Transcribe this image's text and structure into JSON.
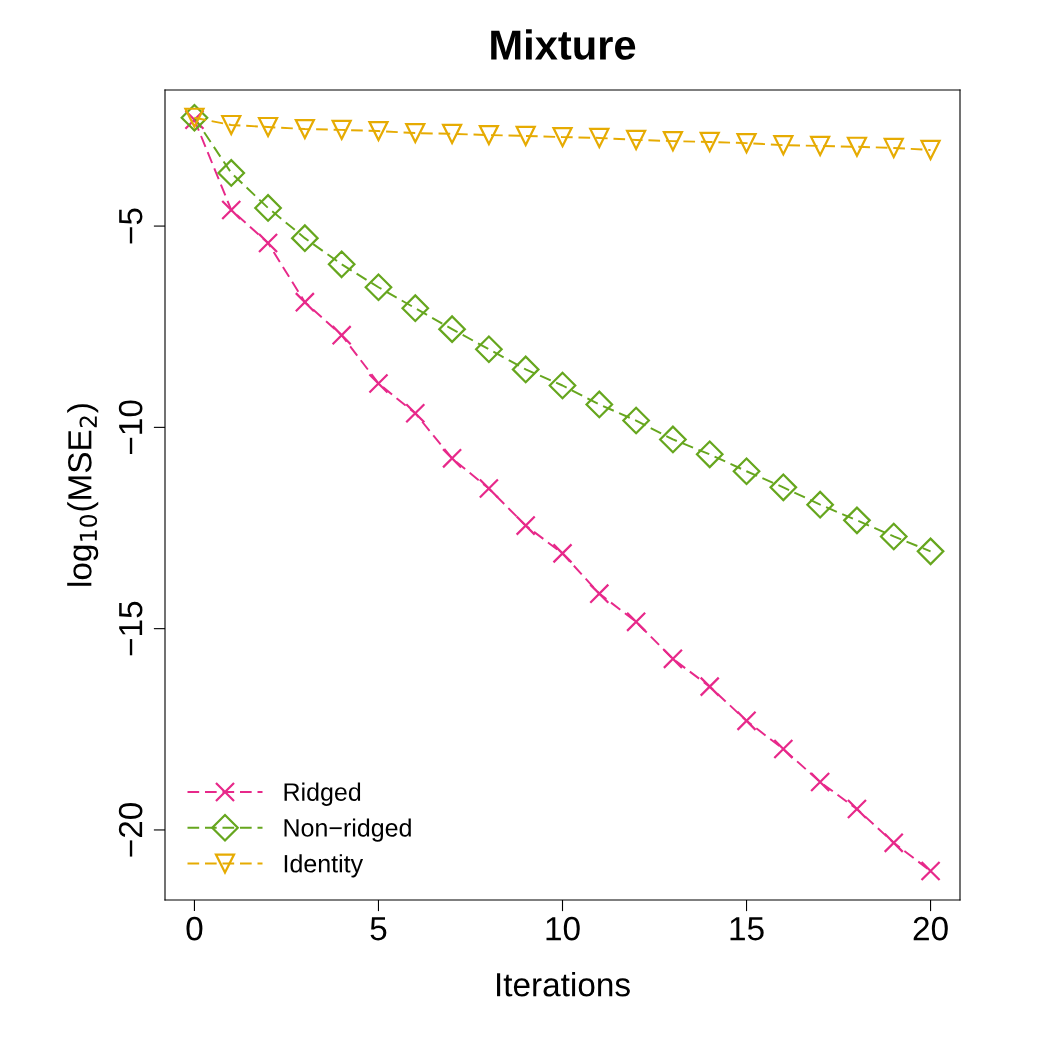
{
  "chart_data": {
    "type": "line",
    "title": "Mixture",
    "xlabel": "Iterations",
    "ylabel": "log$_{10}$(MSE$_{2}$)",
    "x": [
      0,
      1,
      2,
      3,
      4,
      5,
      6,
      7,
      8,
      9,
      10,
      11,
      12,
      13,
      14,
      15,
      16,
      17,
      18,
      19,
      20
    ],
    "series": [
      {
        "name": "Ridged",
        "color": "#e7298a",
        "marker": "cross",
        "values": [
          -2.36,
          -4.6,
          -5.42,
          -6.89,
          -7.71,
          -8.91,
          -9.65,
          -10.77,
          -11.52,
          -12.44,
          -13.13,
          -14.13,
          -14.83,
          -15.75,
          -16.44,
          -17.29,
          -17.99,
          -18.81,
          -19.48,
          -20.32,
          -21.02
        ]
      },
      {
        "name": "Non−ridged",
        "color": "#66a61e",
        "marker": "diamond",
        "values": [
          -2.31,
          -3.68,
          -4.55,
          -5.3,
          -5.95,
          -6.52,
          -7.04,
          -7.56,
          -8.06,
          -8.56,
          -8.96,
          -9.43,
          -9.83,
          -10.3,
          -10.67,
          -11.09,
          -11.49,
          -11.92,
          -12.31,
          -12.71,
          -13.08
        ]
      },
      {
        "name": "Identity",
        "color": "#e6ab02",
        "marker": "triangle",
        "values": [
          -2.31,
          -2.49,
          -2.54,
          -2.59,
          -2.61,
          -2.64,
          -2.69,
          -2.71,
          -2.74,
          -2.76,
          -2.79,
          -2.81,
          -2.86,
          -2.89,
          -2.91,
          -2.94,
          -2.99,
          -3.01,
          -3.03,
          -3.06,
          -3.11
        ]
      }
    ],
    "line_style": "dashed",
    "legend": "bottom left",
    "grid": false,
    "xlim": [
      -0.8,
      20.8
    ],
    "ylim": [
      -21.74,
      -1.62
    ],
    "xticks": [
      0,
      5,
      10,
      15,
      20
    ],
    "yticks": [
      {
        "value": -5,
        "label": "−5"
      },
      {
        "value": -10,
        "label": "−10"
      },
      {
        "value": -15,
        "label": "−15"
      },
      {
        "value": -20,
        "label": "−20"
      }
    ]
  }
}
